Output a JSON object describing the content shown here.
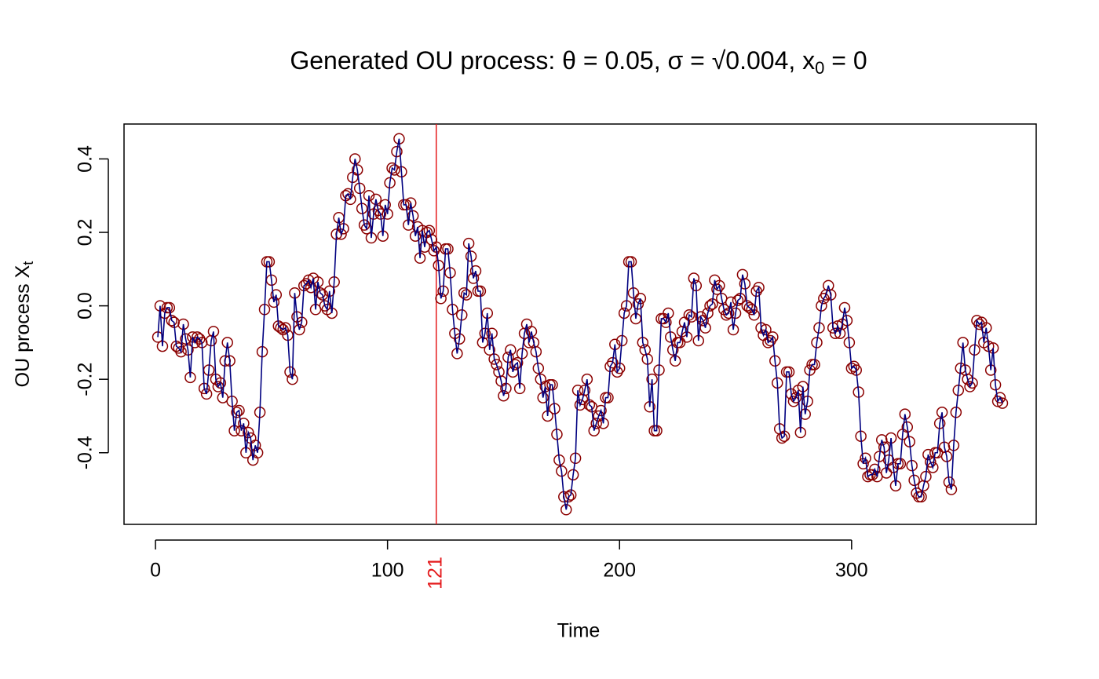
{
  "chart_data": {
    "type": "line",
    "title": [
      "Generated OU process: θ = 0.05, σ = √0.004, x",
      "0",
      " = 0"
    ],
    "xlabel": "Time",
    "ylabel": [
      "OU process X",
      "t"
    ],
    "xlim": [
      -13.56,
      379.56
    ],
    "ylim": [
      -0.595,
      0.495
    ],
    "xticks": [
      0,
      100,
      200,
      300
    ],
    "yticks": [
      -0.4,
      -0.2,
      {
        "value": 0,
        "label": "0.0"
      },
      0.2,
      0.4
    ],
    "vline": {
      "x": 121,
      "color": "#e41a1c"
    },
    "line_color": "#000080",
    "marker_color": "#8b0000",
    "x": [
      1,
      2,
      3,
      4,
      5,
      6,
      7,
      8,
      9,
      10,
      11,
      12,
      13,
      14,
      15,
      16,
      17,
      18,
      19,
      20,
      21,
      22,
      23,
      24,
      25,
      26,
      27,
      28,
      29,
      30,
      31,
      32,
      33,
      34,
      35,
      36,
      37,
      38,
      39,
      40,
      41,
      42,
      43,
      44,
      45,
      46,
      47,
      48,
      49,
      50,
      51,
      52,
      53,
      54,
      55,
      56,
      57,
      58,
      59,
      60,
      61,
      62,
      63,
      64,
      65,
      66,
      67,
      68,
      69,
      70,
      71,
      72,
      73,
      74,
      75,
      76,
      77,
      78,
      79,
      80,
      81,
      82,
      83,
      84,
      85,
      86,
      87,
      88,
      89,
      90,
      91,
      92,
      93,
      94,
      95,
      96,
      97,
      98,
      99,
      100,
      101,
      102,
      103,
      104,
      105,
      106,
      107,
      108,
      109,
      110,
      111,
      112,
      113,
      114,
      115,
      116,
      117,
      118,
      119,
      120,
      121,
      122,
      123,
      124,
      125,
      126,
      127,
      128,
      129,
      130,
      131,
      132,
      133,
      134,
      135,
      136,
      137,
      138,
      139,
      140,
      141,
      142,
      143,
      144,
      145,
      146,
      147,
      148,
      149,
      150,
      151,
      152,
      153,
      154,
      155,
      156,
      157,
      158,
      159,
      160,
      161,
      162,
      163,
      164,
      165,
      166,
      167,
      168,
      169,
      170,
      171,
      172,
      173,
      174,
      175,
      176,
      177,
      178,
      179,
      180,
      181,
      182,
      183,
      184,
      185,
      186,
      187,
      188,
      189,
      190,
      191,
      192,
      193,
      194,
      195,
      196,
      197,
      198,
      199,
      200,
      201,
      202,
      203,
      204,
      205,
      206,
      207,
      208,
      209,
      210,
      211,
      212,
      213,
      214,
      215,
      216,
      217,
      218,
      219,
      220,
      221,
      222,
      223,
      224,
      225,
      226,
      227,
      228,
      229,
      230,
      231,
      232,
      233,
      234,
      235,
      236,
      237,
      238,
      239,
      240,
      241,
      242,
      243,
      244,
      245,
      246,
      247,
      248,
      249,
      250,
      251,
      252,
      253,
      254,
      255,
      256,
      257,
      258,
      259,
      260,
      261,
      262,
      263,
      264,
      265,
      266,
      267,
      268,
      269,
      270,
      271,
      272,
      273,
      274,
      275,
      276,
      277,
      278,
      279,
      280,
      281,
      282,
      283,
      284,
      285,
      286,
      287,
      288,
      289,
      290,
      291,
      292,
      293,
      294,
      295,
      296,
      297,
      298,
      299,
      300,
      301,
      302,
      303,
      304,
      305,
      306,
      307,
      308,
      309,
      310,
      311,
      312,
      313,
      314,
      315,
      316,
      317,
      318,
      319,
      320,
      321,
      322,
      323,
      324,
      325,
      326,
      327,
      328,
      329,
      330,
      331,
      332,
      333,
      334,
      335,
      336,
      337,
      338,
      339,
      340,
      341,
      342,
      343,
      344,
      345,
      346,
      347,
      348,
      349,
      350,
      351,
      352,
      353,
      354,
      355,
      356,
      357,
      358,
      359,
      360,
      361,
      362,
      363,
      364,
      365
    ],
    "values": [
      -0.085,
      0.0,
      -0.11,
      -0.02,
      -0.005,
      -0.005,
      -0.04,
      -0.045,
      -0.11,
      -0.115,
      -0.125,
      -0.05,
      -0.09,
      -0.12,
      -0.195,
      -0.085,
      -0.1,
      -0.085,
      -0.09,
      -0.1,
      -0.225,
      -0.24,
      -0.175,
      -0.095,
      -0.07,
      -0.2,
      -0.22,
      -0.21,
      -0.25,
      -0.15,
      -0.1,
      -0.15,
      -0.26,
      -0.34,
      -0.29,
      -0.285,
      -0.34,
      -0.32,
      -0.4,
      -0.345,
      -0.36,
      -0.42,
      -0.38,
      -0.4,
      -0.29,
      -0.125,
      -0.01,
      0.12,
      0.12,
      0.07,
      0.01,
      0.03,
      -0.055,
      -0.06,
      -0.065,
      -0.06,
      -0.08,
      -0.18,
      -0.2,
      0.035,
      -0.03,
      -0.065,
      -0.045,
      0.055,
      0.06,
      0.07,
      0.05,
      0.075,
      -0.01,
      0.065,
      0.035,
      0.03,
      0.0,
      -0.01,
      0.04,
      -0.02,
      0.065,
      0.195,
      0.24,
      0.195,
      0.21,
      0.3,
      0.305,
      0.29,
      0.35,
      0.4,
      0.37,
      0.32,
      0.265,
      0.22,
      0.21,
      0.3,
      0.185,
      0.25,
      0.29,
      0.26,
      0.25,
      0.19,
      0.275,
      0.25,
      0.335,
      0.375,
      0.37,
      0.42,
      0.455,
      0.365,
      0.275,
      0.275,
      0.22,
      0.28,
      0.245,
      0.19,
      0.215,
      0.13,
      0.205,
      0.16,
      0.2,
      0.205,
      0.18,
      0.15,
      0.16,
      0.11,
      0.02,
      0.04,
      0.155,
      0.155,
      0.09,
      -0.01,
      -0.075,
      -0.13,
      -0.09,
      -0.025,
      0.035,
      0.03,
      0.17,
      0.135,
      0.075,
      0.095,
      0.04,
      0.04,
      -0.1,
      -0.075,
      -0.02,
      -0.12,
      -0.075,
      -0.145,
      -0.16,
      -0.18,
      -0.205,
      -0.245,
      -0.225,
      -0.14,
      -0.12,
      -0.18,
      -0.16,
      -0.155,
      -0.225,
      -0.13,
      -0.075,
      -0.05,
      -0.1,
      -0.07,
      -0.1,
      -0.125,
      -0.17,
      -0.2,
      -0.25,
      -0.22,
      -0.3,
      -0.215,
      -0.215,
      -0.28,
      -0.35,
      -0.42,
      -0.45,
      -0.52,
      -0.555,
      -0.52,
      -0.515,
      -0.46,
      -0.415,
      -0.23,
      -0.27,
      -0.255,
      -0.23,
      -0.2,
      -0.27,
      -0.275,
      -0.34,
      -0.32,
      -0.3,
      -0.285,
      -0.32,
      -0.25,
      -0.25,
      -0.165,
      -0.155,
      -0.105,
      -0.18,
      -0.17,
      -0.095,
      -0.02,
      0.0,
      0.12,
      0.12,
      0.035,
      -0.035,
      0.005,
      0.02,
      -0.1,
      -0.12,
      -0.145,
      -0.275,
      -0.2,
      -0.34,
      -0.34,
      -0.175,
      -0.035,
      -0.035,
      -0.045,
      -0.02,
      -0.085,
      -0.12,
      -0.15,
      -0.1,
      -0.1,
      -0.07,
      -0.045,
      -0.085,
      -0.025,
      -0.03,
      0.075,
      0.055,
      -0.095,
      -0.03,
      -0.04,
      -0.06,
      -0.02,
      0.0,
      0.005,
      0.07,
      0.045,
      0.055,
      0.02,
      -0.01,
      -0.025,
      -0.02,
      0.01,
      -0.065,
      -0.02,
      0.015,
      0.02,
      0.085,
      0.06,
      0.0,
      -0.005,
      -0.01,
      -0.025,
      0.04,
      0.05,
      -0.06,
      -0.08,
      -0.065,
      -0.1,
      -0.095,
      -0.085,
      -0.15,
      -0.21,
      -0.335,
      -0.36,
      -0.355,
      -0.18,
      -0.18,
      -0.24,
      -0.26,
      -0.25,
      -0.23,
      -0.345,
      -0.22,
      -0.295,
      -0.26,
      -0.175,
      -0.16,
      -0.16,
      -0.1,
      -0.06,
      0.0,
      0.02,
      0.03,
      0.055,
      0.03,
      -0.06,
      -0.075,
      -0.055,
      -0.075,
      -0.05,
      -0.005,
      -0.04,
      -0.1,
      -0.17,
      -0.165,
      -0.175,
      -0.235,
      -0.355,
      -0.43,
      -0.415,
      -0.465,
      -0.46,
      -0.46,
      -0.445,
      -0.465,
      -0.41,
      -0.365,
      -0.385,
      -0.455,
      -0.42,
      -0.36,
      -0.44,
      -0.49,
      -0.43,
      -0.43,
      -0.35,
      -0.295,
      -0.33,
      -0.37,
      -0.435,
      -0.475,
      -0.51,
      -0.52,
      -0.52,
      -0.49,
      -0.465,
      -0.405,
      -0.425,
      -0.44,
      -0.4,
      -0.4,
      -0.32,
      -0.29,
      -0.385,
      -0.41,
      -0.48,
      -0.5,
      -0.38,
      -0.29,
      -0.23,
      -0.17,
      -0.1,
      -0.175,
      -0.2,
      -0.22,
      -0.21,
      -0.12,
      -0.04,
      -0.05,
      -0.045,
      -0.1,
      -0.06,
      -0.11,
      -0.175,
      -0.115,
      -0.215,
      -0.26,
      -0.25,
      -0.265
    ]
  }
}
